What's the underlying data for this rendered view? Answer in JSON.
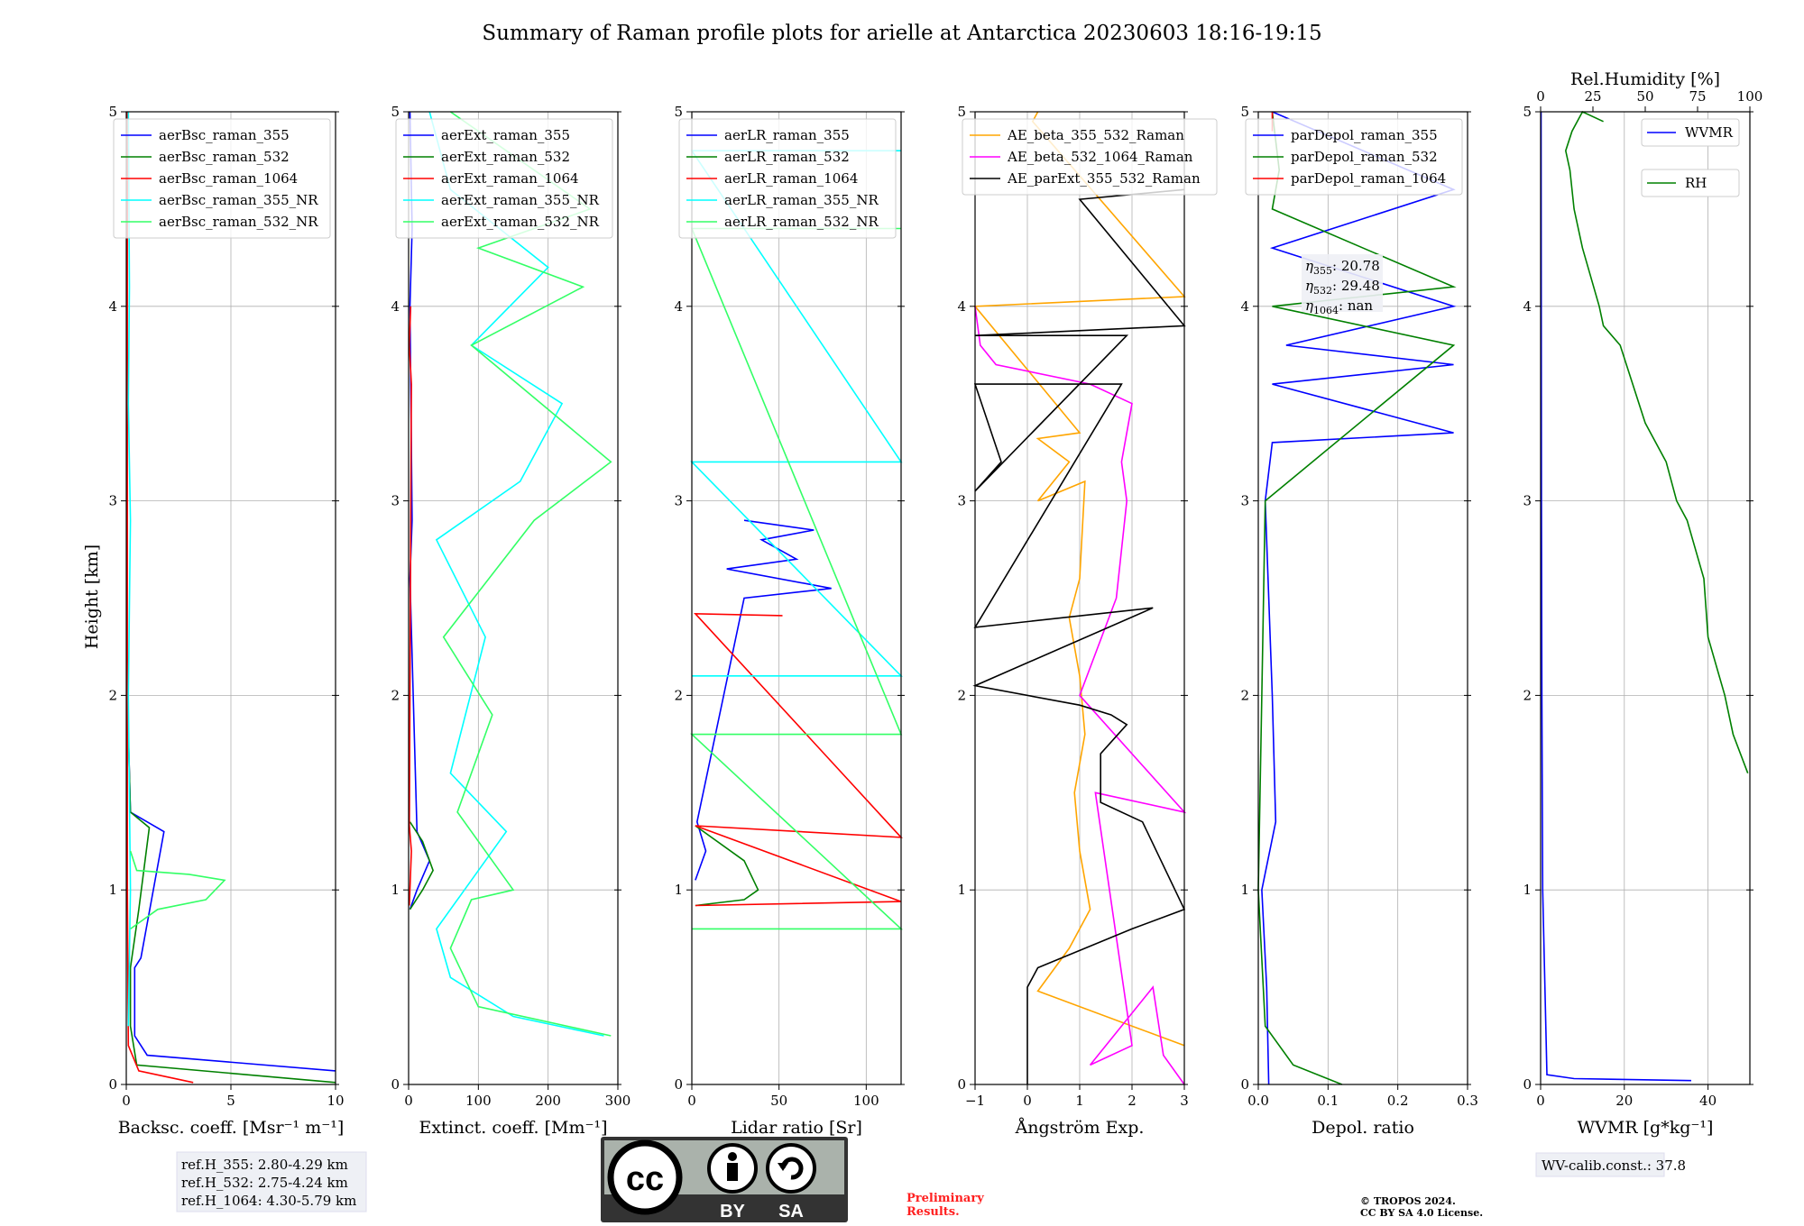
{
  "title": "Summary of Raman profile plots for arielle at Antarctica 20230603 18:16-19:15",
  "ylabel": "Height [km]",
  "refH": [
    "ref.H_355: 2.80-4.29 km",
    "ref.H_532: 2.75-4.24 km",
    "ref.H_1064: 4.30-5.79 km"
  ],
  "eta": [
    "20.78",
    "29.48",
    "nan"
  ],
  "wv_calib": "WV-calib.const.: 37.8",
  "cc_badge": {
    "by": "BY",
    "sa": "SA"
  },
  "preliminary": [
    "Preliminary",
    "Results."
  ],
  "copyright": [
    "© TROPOS 2024.",
    "CC BY SA 4.0 License."
  ],
  "chart_data": [
    {
      "type": "line",
      "xlabel": "Backsc. coeff. [Msr⁻¹ m⁻¹]",
      "xlim": [
        0,
        10
      ],
      "ylim": [
        0,
        5
      ],
      "xticks": [
        0,
        5,
        10
      ],
      "yticks": [
        0,
        1,
        2,
        3,
        4,
        5
      ],
      "grid": true,
      "legend": "upper-left",
      "series": [
        {
          "name": "aerBsc_raman_355",
          "color": "#0000ff",
          "x": [
            10,
            1,
            0.4,
            0.4,
            0.7,
            1.8,
            0.2,
            0.05,
            0.05
          ],
          "y": [
            0.07,
            0.15,
            0.25,
            0.6,
            0.65,
            1.3,
            1.4,
            2.0,
            5.0
          ]
        },
        {
          "name": "aerBsc_raman_532",
          "color": "#008000",
          "x": [
            10,
            0.5,
            0.2,
            0.2,
            0.6,
            1.1,
            0.2,
            0.05,
            0.05
          ],
          "y": [
            0.01,
            0.1,
            0.3,
            0.6,
            0.9,
            1.32,
            1.4,
            2.0,
            5.0
          ]
        },
        {
          "name": "aerBsc_raman_1064",
          "color": "#ff0000",
          "x": [
            3.2,
            0.6,
            0.1,
            0.05,
            0.05
          ],
          "y": [
            0.01,
            0.07,
            0.2,
            1.0,
            5.0
          ]
        },
        {
          "name": "aerBsc_raman_355_NR",
          "color": "#00ffff",
          "x": [
            0.1,
            0.2,
            0.1,
            0.2,
            0.1,
            0.15,
            0.1
          ],
          "y": [
            0.3,
            1.0,
            2.0,
            2.9,
            3.5,
            4.1,
            5.0
          ]
        },
        {
          "name": "aerBsc_raman_532_NR",
          "color": "#33ff66",
          "x": [
            0.2,
            1.5,
            3.8,
            4.7,
            3.0,
            0.5,
            0.2
          ],
          "y": [
            0.8,
            0.9,
            0.95,
            1.05,
            1.08,
            1.1,
            1.2
          ]
        }
      ]
    },
    {
      "type": "line",
      "xlabel": "Extinct. coeff. [Mm⁻¹]",
      "xlim": [
        0,
        300
      ],
      "ylim": [
        0,
        5
      ],
      "xticks": [
        0,
        100,
        200,
        300
      ],
      "yticks": [
        0,
        1,
        2,
        3,
        4,
        5
      ],
      "grid": true,
      "legend": "upper-left",
      "series": [
        {
          "name": "aerExt_raman_355",
          "color": "#0000ff",
          "x": [
            2,
            12,
            30,
            12,
            2,
            5,
            2,
            5,
            2
          ],
          "y": [
            0.9,
            1.0,
            1.15,
            1.3,
            2.6,
            2.9,
            4.0,
            4.4,
            5.0
          ]
        },
        {
          "name": "aerExt_raman_532",
          "color": "#008000",
          "x": [
            2,
            20,
            35,
            20,
            2
          ],
          "y": [
            0.9,
            1.0,
            1.1,
            1.25,
            1.35
          ]
        },
        {
          "name": "aerExt_raman_1064",
          "color": "#ff0000",
          "x": [
            1,
            4,
            1,
            4,
            1,
            3
          ],
          "y": [
            0.92,
            1.2,
            1.33,
            3.6,
            3.8,
            4.0
          ]
        },
        {
          "name": "aerExt_raman_355_NR",
          "color": "#00ffff",
          "x": [
            280,
            150,
            60,
            40,
            80,
            140,
            60,
            110,
            40,
            160,
            220,
            90,
            200,
            60,
            30
          ],
          "y": [
            0.25,
            0.35,
            0.55,
            0.8,
            1.0,
            1.3,
            1.6,
            2.3,
            2.8,
            3.1,
            3.5,
            3.8,
            4.2,
            4.6,
            5.0
          ]
        },
        {
          "name": "aerExt_raman_532_NR",
          "color": "#33ff66",
          "x": [
            290,
            100,
            60,
            90,
            150,
            70,
            120,
            50,
            180,
            290,
            90,
            250,
            100,
            260,
            60
          ],
          "y": [
            0.25,
            0.4,
            0.7,
            0.95,
            1.0,
            1.4,
            1.9,
            2.3,
            2.9,
            3.2,
            3.8,
            4.1,
            4.3,
            4.5,
            5.0
          ]
        }
      ]
    },
    {
      "type": "line",
      "xlabel": "Lidar ratio [Sr]",
      "xlim": [
        0,
        120
      ],
      "ylim": [
        0,
        5
      ],
      "xticks": [
        0,
        50,
        100
      ],
      "yticks": [
        0,
        1,
        2,
        3,
        4,
        5
      ],
      "grid": true,
      "legend": "upper-left",
      "series": [
        {
          "name": "aerLR_raman_355",
          "color": "#0000ff",
          "x": [
            2,
            8,
            3,
            30,
            80,
            20,
            60,
            40,
            70,
            30
          ],
          "y": [
            1.05,
            1.2,
            1.35,
            2.5,
            2.55,
            2.65,
            2.7,
            2.8,
            2.85,
            2.9
          ]
        },
        {
          "name": "aerLR_raman_532",
          "color": "#008000",
          "x": [
            2,
            30,
            38,
            30,
            2
          ],
          "y": [
            0.92,
            0.95,
            1.0,
            1.15,
            1.33
          ]
        },
        {
          "name": "aerLR_raman_1064",
          "color": "#ff0000",
          "x": [
            2,
            120,
            2,
            120,
            2,
            52
          ],
          "y": [
            0.92,
            0.94,
            1.33,
            1.27,
            2.42,
            2.41
          ]
        },
        {
          "name": "aerLR_raman_355_NR",
          "color": "#00ffff",
          "x": [
            0,
            120,
            0,
            120,
            0,
            120
          ],
          "y": [
            2.1,
            2.1,
            3.2,
            3.2,
            4.8,
            4.8
          ]
        },
        {
          "name": "aerLR_raman_532_NR",
          "color": "#33ff66",
          "x": [
            0,
            120,
            0,
            120,
            0,
            120
          ],
          "y": [
            0.8,
            0.8,
            1.8,
            1.8,
            4.4,
            4.4
          ]
        }
      ]
    },
    {
      "type": "line",
      "xlabel": "Ångström Exp.",
      "xlim": [
        -1,
        3
      ],
      "ylim": [
        0,
        5
      ],
      "xticks": [
        -1,
        0,
        1,
        2,
        3
      ],
      "yticks": [
        0,
        1,
        2,
        3,
        4,
        5
      ],
      "grid": true,
      "legend": "upper-left",
      "series": [
        {
          "name": "AE_beta_355_532_Raman",
          "color": "#ffa500",
          "x": [
            3,
            0.2,
            0.8,
            1.2,
            1.0,
            0.9,
            1.1,
            1.0,
            0.8,
            1.0,
            1.1,
            0.2,
            0.8,
            0.2,
            1.0,
            -1,
            3,
            0.1,
            0.2
          ],
          "y": [
            0.2,
            0.48,
            0.7,
            0.9,
            1.2,
            1.5,
            1.8,
            2.1,
            2.4,
            2.6,
            3.1,
            3.0,
            3.2,
            3.32,
            3.35,
            4.0,
            4.05,
            4.95,
            5.0
          ]
        },
        {
          "name": "AE_beta_532_1064_Raman",
          "color": "#ff00ff",
          "x": [
            3,
            2.6,
            2.4,
            1.2,
            2.0,
            1.3,
            3.0,
            1.0,
            1.7,
            1.9,
            1.8,
            2.0,
            1.2,
            -0.6,
            -0.9,
            -1
          ],
          "y": [
            0.0,
            0.15,
            0.5,
            0.1,
            0.2,
            1.5,
            1.4,
            2.0,
            2.5,
            3.0,
            3.2,
            3.5,
            3.6,
            3.7,
            3.8,
            4.0
          ]
        },
        {
          "name": "AE_parExt_355_532_Raman",
          "color": "#000000",
          "x": [
            0,
            0,
            0.2,
            2.0,
            3.0,
            2.2,
            1.4,
            1.4,
            1.9,
            1.6,
            1.0,
            -1,
            2.4,
            -1,
            1.8,
            -1,
            -0.5,
            -1,
            1.9,
            -1,
            3.0,
            1.0,
            3.0
          ],
          "y": [
            0.0,
            0.5,
            0.6,
            0.8,
            0.9,
            1.35,
            1.45,
            1.7,
            1.85,
            1.9,
            1.95,
            2.05,
            2.45,
            2.35,
            3.6,
            3.6,
            3.2,
            3.05,
            3.85,
            3.85,
            3.9,
            4.55,
            4.6
          ]
        }
      ]
    },
    {
      "type": "line",
      "xlabel": "Depol. ratio",
      "xlim": [
        0,
        0.3
      ],
      "ylim": [
        0,
        5
      ],
      "xticks": [
        0.0,
        0.1,
        0.2,
        0.3
      ],
      "xticklabels": [
        "0.0",
        "0.1",
        "0.2",
        "0.3"
      ],
      "yticks": [
        0,
        1,
        2,
        3,
        4,
        5
      ],
      "grid": true,
      "legend": "upper-left",
      "series": [
        {
          "name": "parDepol_raman_355",
          "color": "#0000ff",
          "x": [
            0.015,
            0.012,
            0.005,
            0.025,
            0.02,
            0.01,
            0.02,
            0.28,
            0.02,
            0.28,
            0.04,
            0.28,
            0.02,
            0.28,
            0.02
          ],
          "y": [
            0.0,
            0.5,
            1.0,
            1.35,
            2.0,
            3.0,
            3.3,
            3.35,
            3.6,
            3.7,
            3.8,
            4.0,
            4.3,
            4.6,
            5.0
          ]
        },
        {
          "name": "parDepol_raman_532",
          "color": "#008000",
          "x": [
            0.12,
            0.05,
            0.01,
            0.0,
            0.005,
            0.01,
            0.28,
            0.02,
            0.28,
            0.02,
            0.03,
            0.02
          ],
          "y": [
            0.0,
            0.1,
            0.3,
            1.0,
            2.0,
            3.0,
            3.8,
            4.0,
            4.1,
            4.5,
            4.7,
            5.0
          ]
        },
        {
          "name": "parDepol_raman_1064",
          "color": "#ff0000",
          "x": [
            0.02,
            0.02
          ],
          "y": [
            4.9,
            5.0
          ]
        }
      ]
    },
    {
      "type": "line",
      "xlabel": "WVMR [g*kg⁻¹]",
      "xlim": [
        0,
        50
      ],
      "ylim": [
        0,
        5
      ],
      "xticks": [
        0,
        20,
        40
      ],
      "yticks": [
        0,
        1,
        2,
        3,
        4,
        5
      ],
      "grid": true,
      "legend": "upper-right",
      "x2label": "Rel.Humidity [%]",
      "x2lim": [
        0,
        100
      ],
      "x2ticks": [
        0,
        25,
        50,
        75,
        100
      ],
      "series": [
        {
          "name": "WVMR",
          "color": "#0000ff",
          "x": [
            36,
            8,
            1.5,
            0.5,
            0.3,
            0.2,
            0.1
          ],
          "y": [
            0.02,
            0.03,
            0.05,
            1.0,
            2.0,
            3.0,
            5.0
          ]
        },
        {
          "name": "RH",
          "color": "#008000",
          "axis": "x2",
          "x": [
            99,
            92,
            88,
            80,
            78,
            70,
            65,
            60,
            50,
            38,
            30,
            28,
            20,
            16,
            14,
            12,
            15,
            20,
            30
          ],
          "y": [
            1.6,
            1.8,
            2.0,
            2.3,
            2.6,
            2.9,
            3.0,
            3.2,
            3.4,
            3.8,
            3.9,
            4.0,
            4.3,
            4.5,
            4.7,
            4.8,
            4.9,
            5.0,
            4.95
          ]
        }
      ]
    }
  ]
}
